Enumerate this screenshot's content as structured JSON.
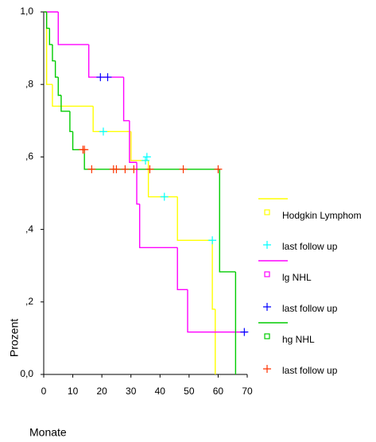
{
  "chart_data": {
    "type": "step",
    "x_label": "Monate",
    "y_label": "Prozent",
    "xlim": [
      0,
      70
    ],
    "ylim": [
      0,
      1
    ],
    "xticks": [
      0,
      10,
      20,
      30,
      40,
      50,
      60,
      70
    ],
    "yticks": [
      {
        "value": 0,
        "label": "0,0"
      },
      {
        "value": 0.2,
        "label": ",2"
      },
      {
        "value": 0.4,
        "label": ",4"
      },
      {
        "value": 0.6,
        "label": ",6"
      },
      {
        "value": 0.8,
        "label": ",8"
      },
      {
        "value": 1,
        "label": "1,0"
      }
    ],
    "legend": "right",
    "series": [
      {
        "name": "Hodgkin Lymphom",
        "color": "#ffff00",
        "x": [
          0,
          1,
          3,
          17,
          30,
          36,
          46,
          58,
          59
        ],
        "values": [
          1,
          0.8,
          0.74,
          0.67,
          0.59,
          0.49,
          0.37,
          0.18,
          0
        ]
      },
      {
        "name": "last follow up",
        "color": "#00ffff",
        "marker": "+",
        "x": [
          20.5,
          35,
          35.5,
          41.5,
          58
        ],
        "values": [
          0.67,
          0.59,
          0.6,
          0.49,
          0.37
        ]
      },
      {
        "name": "lg NHL",
        "color": "#ff00ff",
        "x": [
          0,
          5,
          15.5,
          27.5,
          29.5,
          32,
          33,
          46,
          49.5,
          70
        ],
        "values": [
          1,
          0.91,
          0.82,
          0.7,
          0.585,
          0.47,
          0.35,
          0.234,
          0.117,
          0.117
        ]
      },
      {
        "name": "last follow up",
        "color": "#0000ff",
        "marker": "+",
        "x": [
          19.5,
          22,
          69
        ],
        "values": [
          0.82,
          0.82,
          0.117
        ]
      },
      {
        "name": "hg NHL",
        "color": "#00cc00",
        "x": [
          0,
          1,
          2,
          3,
          4,
          5,
          6,
          9,
          10,
          14,
          60.5,
          66
        ],
        "values": [
          1,
          0.955,
          0.91,
          0.865,
          0.82,
          0.77,
          0.726,
          0.67,
          0.62,
          0.566,
          0.283,
          0
        ]
      },
      {
        "name": "last follow up",
        "color": "#ff3300",
        "marker": "+",
        "x": [
          13.5,
          14,
          16.5,
          24,
          25,
          28,
          31,
          36.5,
          48,
          60
        ],
        "values": [
          0.62,
          0.62,
          0.566,
          0.566,
          0.566,
          0.566,
          0.566,
          0.566,
          0.566,
          0.566
        ]
      }
    ]
  }
}
